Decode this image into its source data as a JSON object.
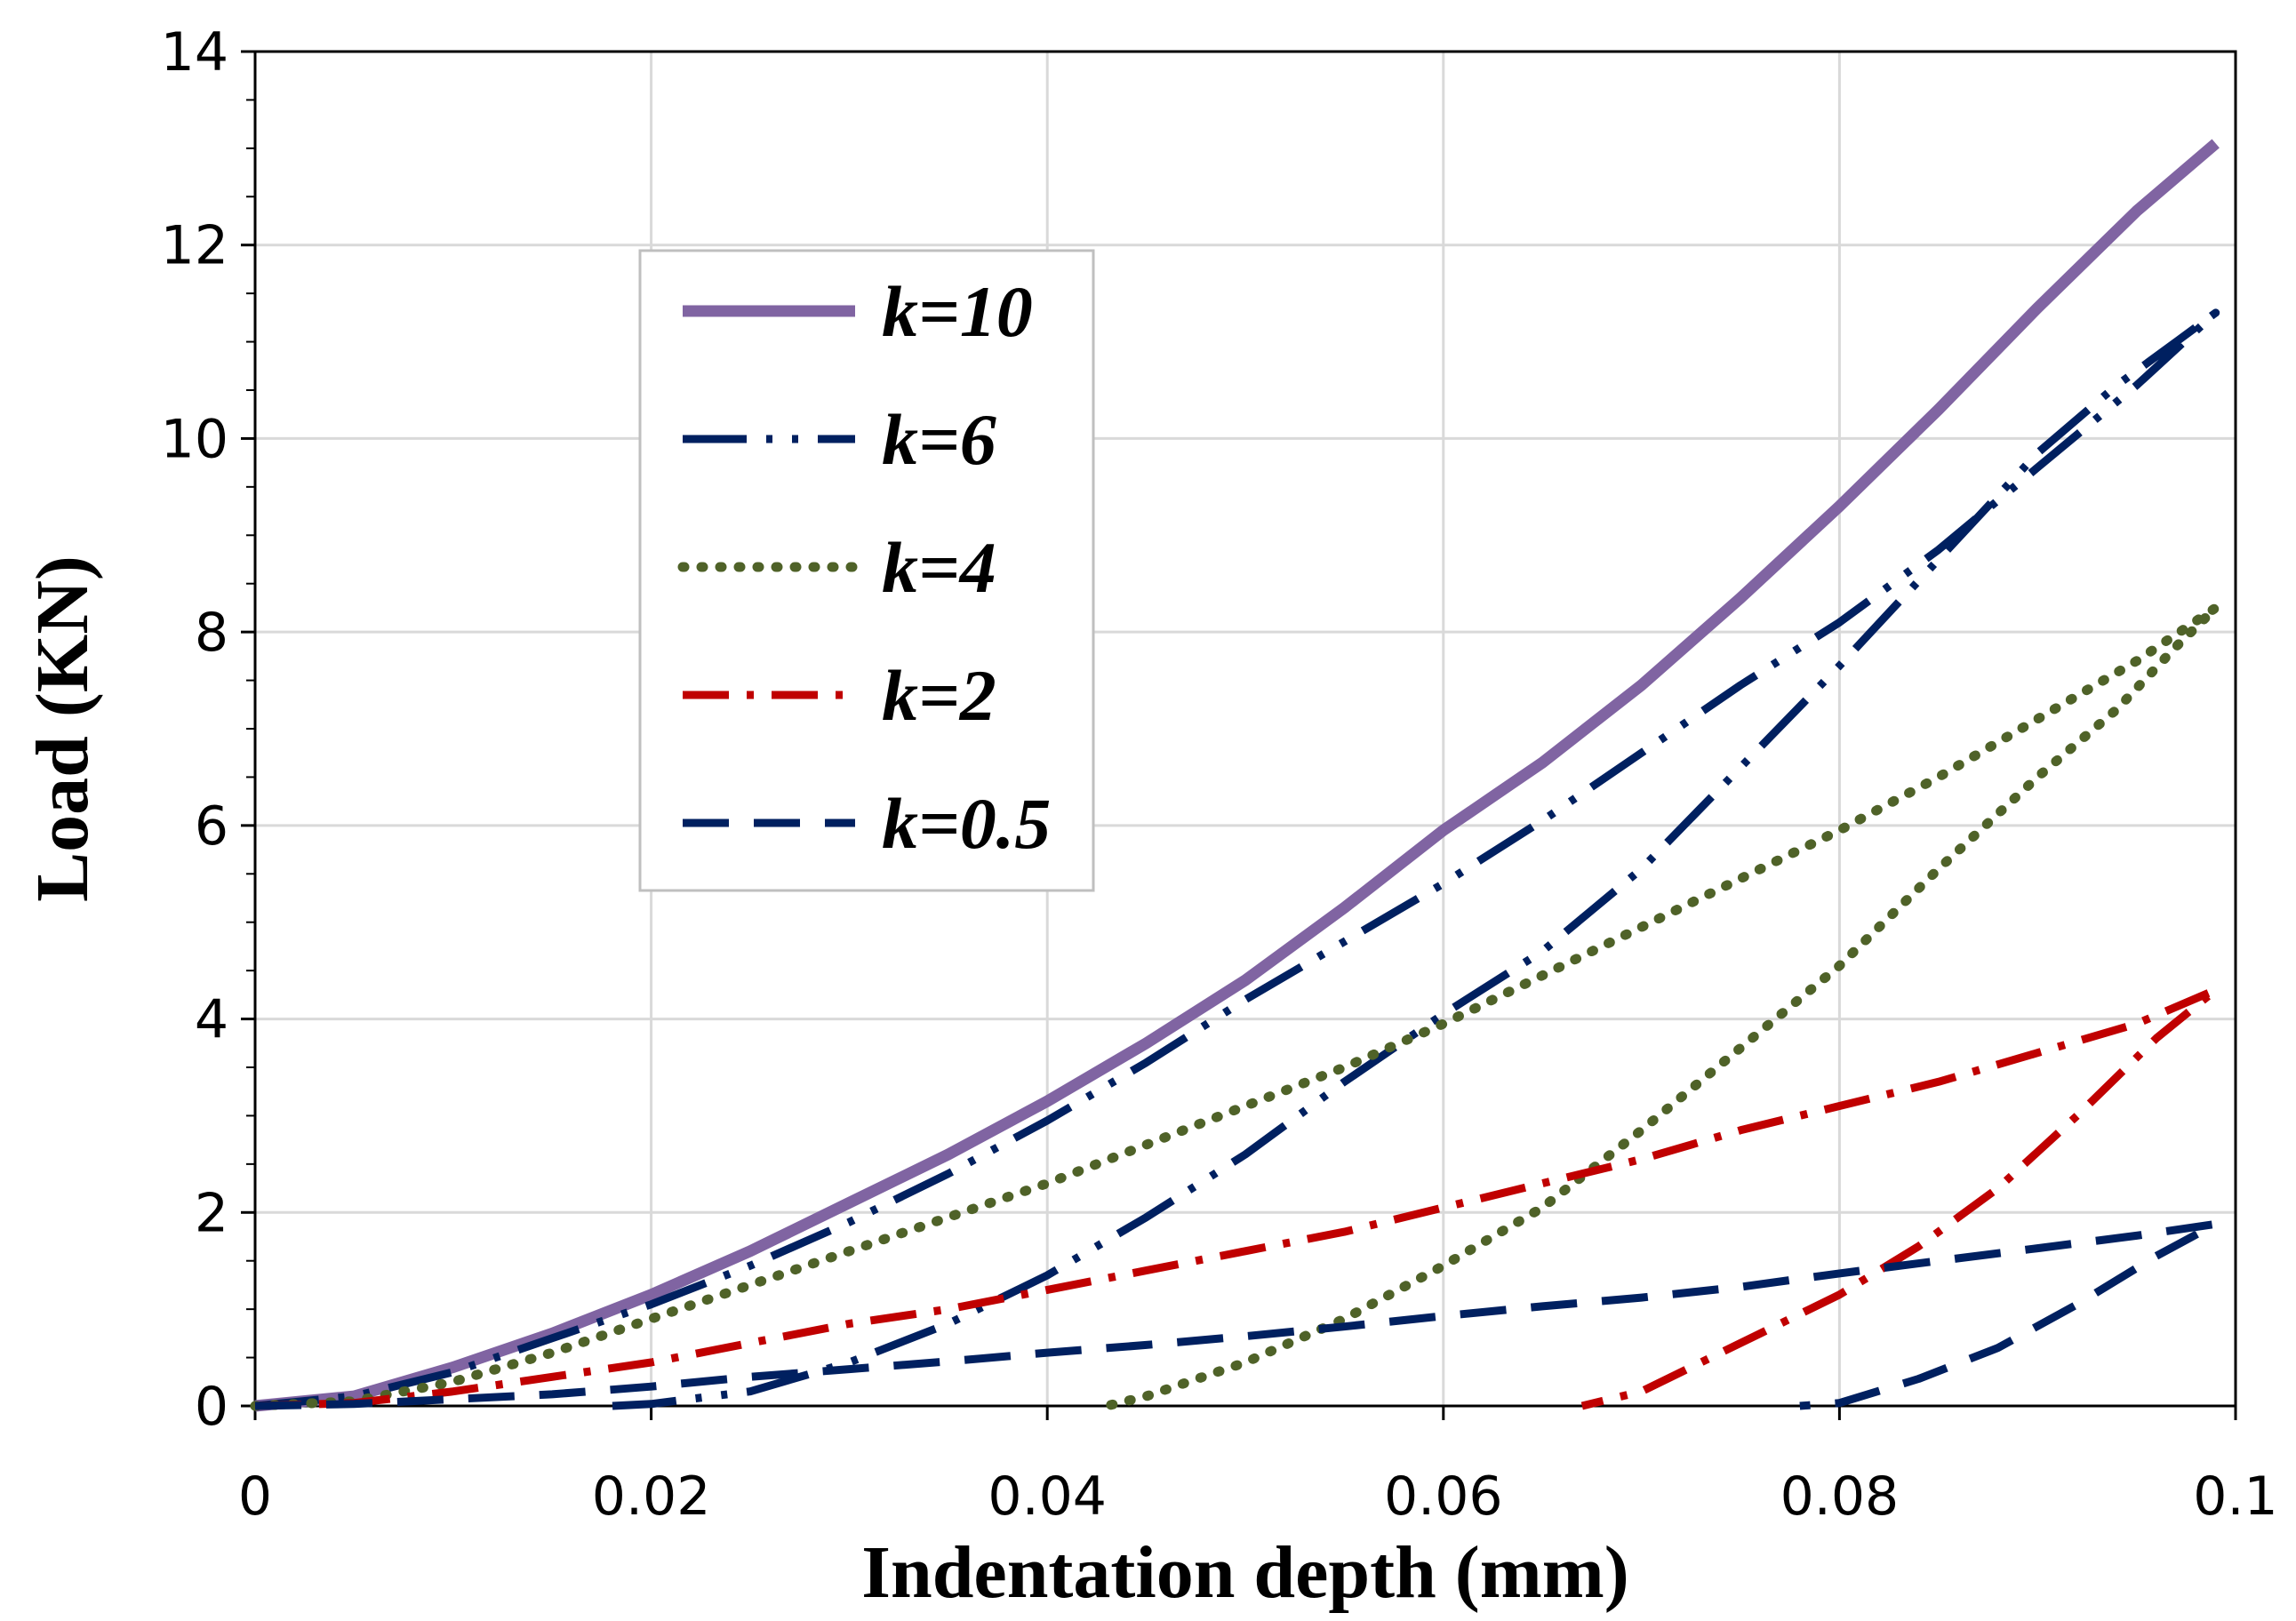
{
  "chart_data": {
    "type": "line",
    "title": "",
    "xlabel": "Indentation depth (mm)",
    "ylabel": "Load (KN)",
    "xlim": [
      0,
      0.1
    ],
    "ylim": [
      0,
      14
    ],
    "xticks": [
      0,
      0.02,
      0.04,
      0.06,
      0.08,
      0.1
    ],
    "xtick_labels": [
      "0",
      "0.02",
      "0.04",
      "0.06",
      "0.08",
      "0.1"
    ],
    "yticks": [
      0,
      2,
      4,
      6,
      8,
      10,
      12,
      14
    ],
    "ytick_labels": [
      "0",
      "2",
      "4",
      "6",
      "8",
      "10",
      "12",
      "14"
    ],
    "grid": true,
    "legend_position": "upper-left",
    "series": [
      {
        "name": "k=10",
        "color": "#8064a2",
        "style": "solid",
        "x": [
          0,
          0.005,
          0.01,
          0.015,
          0.02,
          0.025,
          0.03,
          0.035,
          0.04,
          0.045,
          0.05,
          0.055,
          0.06,
          0.065,
          0.07,
          0.075,
          0.08,
          0.085,
          0.09,
          0.095,
          0.099
        ],
        "y": [
          0,
          0.1,
          0.4,
          0.75,
          1.15,
          1.6,
          2.1,
          2.6,
          3.15,
          3.75,
          4.4,
          5.15,
          5.95,
          6.65,
          7.45,
          8.35,
          9.3,
          10.3,
          11.35,
          12.35,
          13.05
        ]
      },
      {
        "name": "k=6",
        "color": "#002060",
        "style": "long-dash-dot-dot",
        "x": [
          0,
          0.005,
          0.01,
          0.015,
          0.02,
          0.025,
          0.03,
          0.035,
          0.04,
          0.045,
          0.05,
          0.055,
          0.06,
          0.065,
          0.07,
          0.075,
          0.08,
          0.085,
          0.09,
          0.095,
          0.099,
          0.097,
          0.094,
          0.09,
          0.085,
          0.08,
          0.075,
          0.07,
          0.065,
          0.06,
          0.055,
          0.05,
          0.045,
          0.04,
          0.035,
          0.03,
          0.025,
          0.02,
          0.018
        ],
        "y": [
          0,
          0.1,
          0.35,
          0.7,
          1.05,
          1.45,
          1.9,
          2.4,
          2.95,
          3.55,
          4.2,
          4.8,
          5.4,
          6.05,
          6.75,
          7.45,
          8.1,
          8.85,
          9.7,
          10.55,
          11.3,
          11.0,
          10.55,
          9.85,
          8.75,
          7.65,
          6.6,
          5.55,
          4.7,
          4.05,
          3.35,
          2.6,
          1.95,
          1.35,
          0.85,
          0.45,
          0.15,
          0.02,
          0
        ]
      },
      {
        "name": "k=4",
        "color": "#4f6228",
        "style": "dotted",
        "x": [
          0,
          0.005,
          0.01,
          0.015,
          0.02,
          0.025,
          0.03,
          0.035,
          0.04,
          0.045,
          0.05,
          0.055,
          0.06,
          0.065,
          0.07,
          0.075,
          0.08,
          0.085,
          0.09,
          0.095,
          0.099,
          0.097,
          0.094,
          0.09,
          0.085,
          0.08,
          0.075,
          0.07,
          0.065,
          0.06,
          0.055,
          0.05,
          0.045,
          0.043
        ],
        "y": [
          0,
          0.05,
          0.25,
          0.55,
          0.9,
          1.25,
          1.6,
          1.95,
          2.3,
          2.7,
          3.1,
          3.5,
          3.95,
          4.45,
          4.95,
          5.45,
          5.95,
          6.5,
          7.1,
          7.7,
          8.25,
          7.85,
          7.2,
          6.5,
          5.55,
          4.55,
          3.7,
          2.85,
          2.05,
          1.45,
          0.9,
          0.45,
          0.1,
          0
        ]
      },
      {
        "name": "k=2",
        "color": "#c00000",
        "style": "dash-dot",
        "x": [
          0,
          0.005,
          0.01,
          0.015,
          0.02,
          0.025,
          0.03,
          0.035,
          0.04,
          0.045,
          0.05,
          0.055,
          0.06,
          0.065,
          0.07,
          0.075,
          0.08,
          0.085,
          0.09,
          0.095,
          0.099,
          0.096,
          0.092,
          0.088,
          0.084,
          0.08,
          0.076,
          0.072,
          0.07,
          0.067
        ],
        "y": [
          0,
          0.03,
          0.15,
          0.3,
          0.45,
          0.65,
          0.85,
          1.0,
          1.2,
          1.4,
          1.6,
          1.8,
          2.05,
          2.3,
          2.55,
          2.85,
          3.1,
          3.35,
          3.65,
          3.95,
          4.3,
          3.8,
          3.0,
          2.25,
          1.65,
          1.15,
          0.75,
          0.35,
          0.15,
          0
        ]
      },
      {
        "name": "k=0.5",
        "color": "#002060",
        "style": "dashed",
        "x": [
          0,
          0.005,
          0.01,
          0.015,
          0.02,
          0.025,
          0.03,
          0.035,
          0.04,
          0.045,
          0.05,
          0.055,
          0.06,
          0.065,
          0.07,
          0.075,
          0.08,
          0.085,
          0.09,
          0.095,
          0.099,
          0.096,
          0.092,
          0.088,
          0.084,
          0.08,
          0.078
        ],
        "y": [
          0,
          0.02,
          0.07,
          0.12,
          0.2,
          0.3,
          0.38,
          0.46,
          0.55,
          0.63,
          0.72,
          0.82,
          0.93,
          1.03,
          1.12,
          1.23,
          1.37,
          1.5,
          1.63,
          1.76,
          1.88,
          1.55,
          1.05,
          0.6,
          0.28,
          0.03,
          0
        ]
      }
    ]
  }
}
